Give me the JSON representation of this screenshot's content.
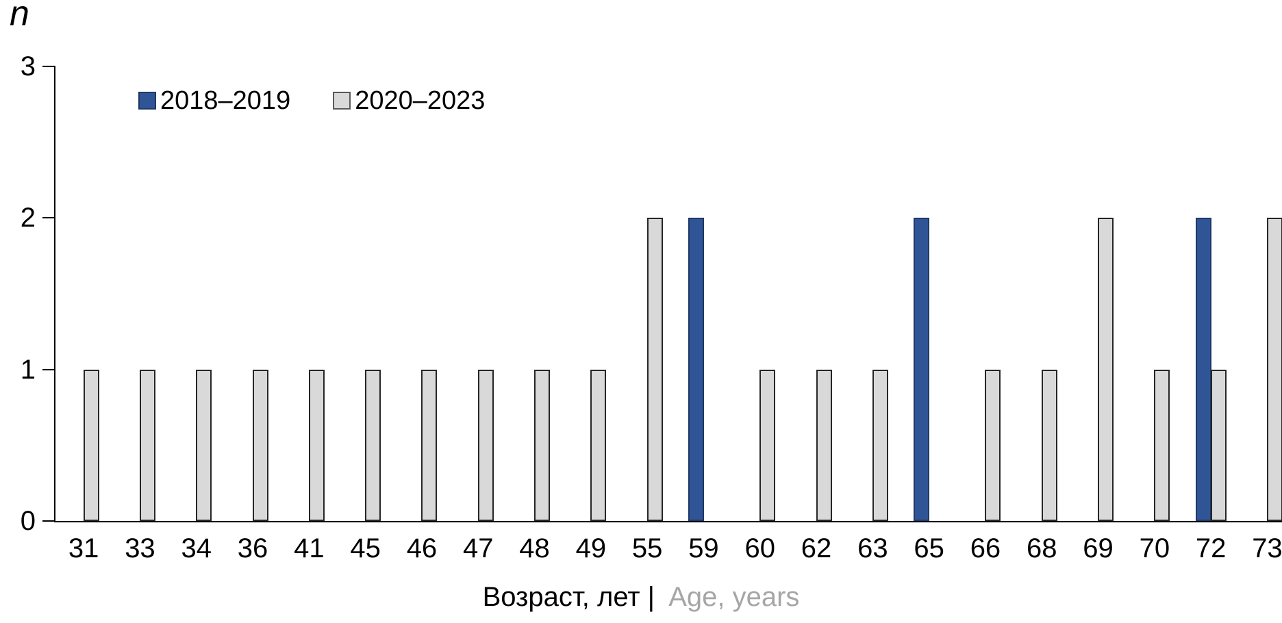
{
  "chart_data": {
    "type": "bar",
    "title": "",
    "ylabel": "n",
    "xlabel": "Возраст, лет | Age, years",
    "xlabel_primary": "Возраст, лет |",
    "xlabel_secondary": "Age, years",
    "xlabel_secondary_color": "#A6A6A6",
    "categories": [
      "31",
      "33",
      "34",
      "36",
      "41",
      "45",
      "46",
      "47",
      "48",
      "49",
      "55",
      "59",
      "60",
      "62",
      "63",
      "65",
      "66",
      "68",
      "69",
      "70",
      "72",
      "73"
    ],
    "series": [
      {
        "name": "2018–2019",
        "color": "#2F5597",
        "border": "#1F3864",
        "values": [
          0,
          0,
          0,
          0,
          0,
          0,
          0,
          0,
          0,
          0,
          0,
          2,
          0,
          0,
          0,
          2,
          0,
          0,
          0,
          0,
          2,
          0
        ]
      },
      {
        "name": "2020–2023",
        "color": "#D9D9D9",
        "border": "#262626",
        "values": [
          1,
          1,
          1,
          1,
          1,
          1,
          1,
          1,
          1,
          1,
          2,
          0,
          1,
          1,
          1,
          0,
          1,
          1,
          2,
          1,
          1,
          2
        ]
      }
    ],
    "ylim": [
      0,
      3
    ],
    "yticks": [
      0,
      1,
      2,
      3
    ],
    "grid": false,
    "legend_position": "top-left",
    "note": "rightmost category (73) bar is clipped by the right edge of the image"
  }
}
